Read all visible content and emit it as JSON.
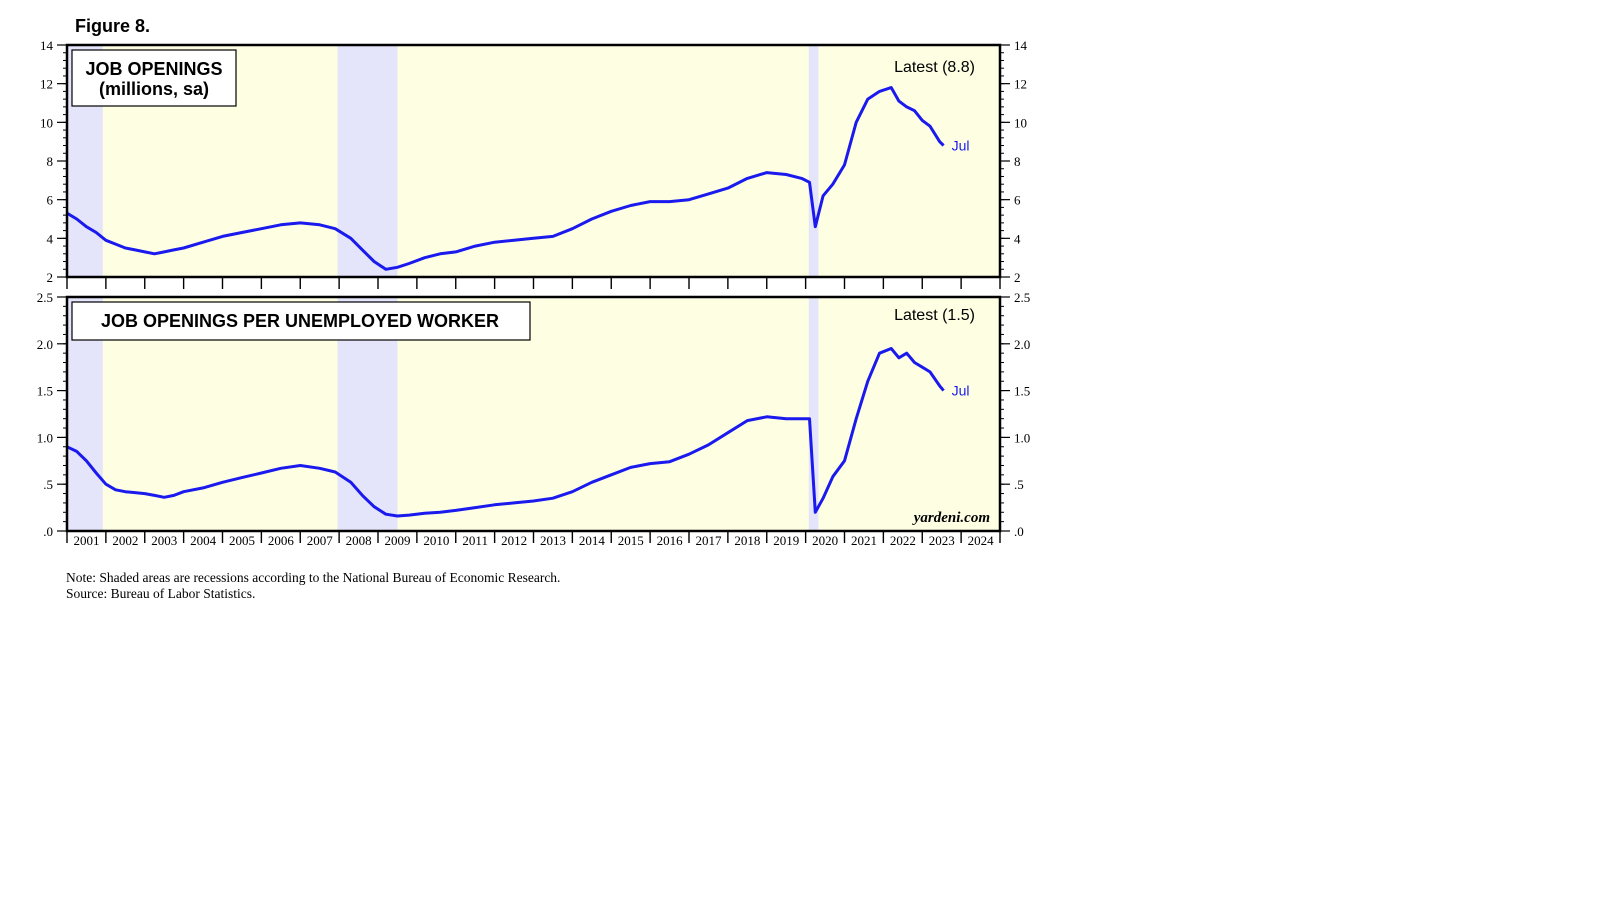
{
  "figure_label": "Figure 8.",
  "note": "Note: Shaded areas are recessions according to the National Bureau of Economic Research.",
  "source": "Source: Bureau of Labor Statistics.",
  "watermark": "yardeni.com",
  "colors": {
    "line": "#1a1aee",
    "background": "#fefee3",
    "recession": "#e4e4fa",
    "frame": "#000000"
  },
  "x_axis": {
    "start": 2001.0,
    "end": 2025.0,
    "year_labels": [
      "2001",
      "2002",
      "2003",
      "2004",
      "2005",
      "2006",
      "2007",
      "2008",
      "2009",
      "2010",
      "2011",
      "2012",
      "2013",
      "2014",
      "2015",
      "2016",
      "2017",
      "2018",
      "2019",
      "2020",
      "2021",
      "2022",
      "2023",
      "2024"
    ]
  },
  "recessions": [
    [
      2001.0,
      2001.92
    ],
    [
      2007.96,
      2009.5
    ],
    [
      2020.08,
      2020.33
    ]
  ],
  "chart_data": [
    {
      "type": "line",
      "title": "JOB OPENINGS",
      "subtitle": "(millions, sa)",
      "latest_label": "Latest (8.8)",
      "end_label": "Jul",
      "ylim": [
        2,
        14
      ],
      "yticks": [
        2,
        4,
        6,
        8,
        10,
        12,
        14
      ],
      "ytick_labels": [
        "2",
        "4",
        "6",
        "8",
        "10",
        "12",
        "14"
      ],
      "grid": false,
      "series": [
        {
          "x": [
            2001.0,
            2001.25,
            2001.5,
            2001.75,
            2002.0,
            2002.25,
            2002.5,
            2002.75,
            2003.0,
            2003.25,
            2003.5,
            2003.75,
            2004.0,
            2004.5,
            2005.0,
            2005.5,
            2006.0,
            2006.5,
            2007.0,
            2007.5,
            2007.9,
            2008.3,
            2008.6,
            2008.9,
            2009.2,
            2009.5,
            2009.8,
            2010.2,
            2010.6,
            2011.0,
            2011.5,
            2012.0,
            2012.5,
            2013.0,
            2013.5,
            2014.0,
            2014.5,
            2015.0,
            2015.5,
            2016.0,
            2016.5,
            2017.0,
            2017.5,
            2018.0,
            2018.5,
            2019.0,
            2019.5,
            2019.9,
            2020.1,
            2020.25,
            2020.45,
            2020.7,
            2021.0,
            2021.3,
            2021.6,
            2021.9,
            2022.2,
            2022.4,
            2022.6,
            2022.8,
            2023.0,
            2023.2,
            2023.45,
            2023.55
          ],
          "values": [
            5.3,
            5.0,
            4.6,
            4.3,
            3.9,
            3.7,
            3.5,
            3.4,
            3.3,
            3.2,
            3.3,
            3.4,
            3.5,
            3.8,
            4.1,
            4.3,
            4.5,
            4.7,
            4.8,
            4.7,
            4.5,
            4.0,
            3.4,
            2.8,
            2.4,
            2.5,
            2.7,
            3.0,
            3.2,
            3.3,
            3.6,
            3.8,
            3.9,
            4.0,
            4.1,
            4.5,
            5.0,
            5.4,
            5.7,
            5.9,
            5.9,
            6.0,
            6.3,
            6.6,
            7.1,
            7.4,
            7.3,
            7.1,
            6.9,
            4.6,
            6.2,
            6.8,
            7.8,
            10.0,
            11.2,
            11.6,
            11.8,
            11.1,
            10.8,
            10.6,
            10.1,
            9.8,
            9.0,
            8.8
          ]
        }
      ]
    },
    {
      "type": "line",
      "title": "JOB OPENINGS PER UNEMPLOYED WORKER",
      "latest_label": "Latest (1.5)",
      "end_label": "Jul",
      "ylim": [
        0,
        2.5
      ],
      "yticks": [
        0,
        0.5,
        1.0,
        1.5,
        2.0,
        2.5
      ],
      "ytick_labels": [
        ".0",
        ".5",
        "1.0",
        "1.5",
        "2.0",
        "2.5"
      ],
      "grid": false,
      "series": [
        {
          "x": [
            2001.0,
            2001.25,
            2001.5,
            2001.75,
            2002.0,
            2002.25,
            2002.5,
            2002.75,
            2003.0,
            2003.25,
            2003.5,
            2003.75,
            2004.0,
            2004.5,
            2005.0,
            2005.5,
            2006.0,
            2006.5,
            2007.0,
            2007.5,
            2007.9,
            2008.3,
            2008.6,
            2008.9,
            2009.2,
            2009.5,
            2009.8,
            2010.2,
            2010.6,
            2011.0,
            2011.5,
            2012.0,
            2012.5,
            2013.0,
            2013.5,
            2014.0,
            2014.5,
            2015.0,
            2015.5,
            2016.0,
            2016.5,
            2017.0,
            2017.5,
            2018.0,
            2018.5,
            2019.0,
            2019.5,
            2019.9,
            2020.1,
            2020.25,
            2020.45,
            2020.7,
            2021.0,
            2021.3,
            2021.6,
            2021.9,
            2022.2,
            2022.4,
            2022.6,
            2022.8,
            2023.0,
            2023.2,
            2023.45,
            2023.55
          ],
          "values": [
            0.9,
            0.85,
            0.75,
            0.62,
            0.5,
            0.44,
            0.42,
            0.41,
            0.4,
            0.38,
            0.36,
            0.38,
            0.42,
            0.46,
            0.52,
            0.57,
            0.62,
            0.67,
            0.7,
            0.67,
            0.63,
            0.52,
            0.38,
            0.26,
            0.18,
            0.16,
            0.17,
            0.19,
            0.2,
            0.22,
            0.25,
            0.28,
            0.3,
            0.32,
            0.35,
            0.42,
            0.52,
            0.6,
            0.68,
            0.72,
            0.74,
            0.82,
            0.92,
            1.05,
            1.18,
            1.22,
            1.2,
            1.2,
            1.2,
            0.2,
            0.35,
            0.58,
            0.75,
            1.2,
            1.6,
            1.9,
            1.95,
            1.85,
            1.9,
            1.8,
            1.75,
            1.7,
            1.55,
            1.5
          ]
        }
      ]
    }
  ]
}
